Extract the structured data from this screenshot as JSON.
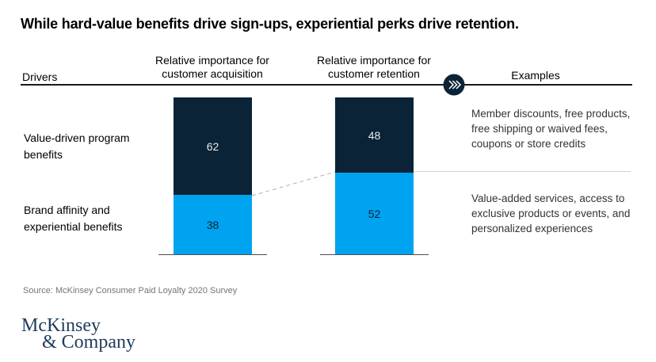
{
  "title": "While hard-value benefits drive sign-ups, experiential perks drive retention.",
  "columns": {
    "drivers": "Drivers",
    "acquisition": "Relative importance for customer acquisition",
    "retention": "Relative importance for customer retention",
    "examples": "Examples"
  },
  "rows": [
    {
      "driver": "Value-driven program benefits",
      "acquisition": 62,
      "retention": 48,
      "example": "Member discounts, free products, free shipping or waived fees, coupons or store credits"
    },
    {
      "driver": "Brand affinity and experiential benefits",
      "acquisition": 38,
      "retention": 52,
      "example": "Value-added services, access to exclusive products or events, and personalized experiences"
    }
  ],
  "source": "Source: McKinsey Consumer Paid Loyalty 2020 Survey",
  "logo": {
    "line1": "McKinsey",
    "line2": "& Company"
  },
  "icons": {
    "chevrons": "chevrons-right-icon"
  },
  "colors": {
    "deep_blue": "#0a2336",
    "cyan": "#00a3f0",
    "bar_label_light": "#e8ecef",
    "bar_label_dark": "#0d2232",
    "rule_dark": "#1a1a1a",
    "separator_gray": "#cfcfcf",
    "logo_navy": "#1e3c5c"
  },
  "chart_data": {
    "type": "bar",
    "variant": "stacked-100-percent",
    "title": "While hard-value benefits drive sign-ups, experiential perks drive retention.",
    "categories": [
      "Relative importance for customer acquisition",
      "Relative importance for customer retention"
    ],
    "series": [
      {
        "name": "Value-driven program benefits",
        "values": [
          62,
          48
        ],
        "color": "#0a2336",
        "position": "top"
      },
      {
        "name": "Brand affinity and experiential benefits",
        "values": [
          38,
          52
        ],
        "color": "#00a3f0",
        "position": "bottom"
      }
    ],
    "ylim": [
      0,
      100
    ],
    "grid": false,
    "legend_position": "row labels on left side",
    "annotations": [
      "dashed connector between segment boundaries of the two bars",
      "double-chevron badge on header rule between retention column and Examples column"
    ],
    "examples_column": [
      "Member discounts, free products, free shipping or waived fees, coupons or store credits",
      "Value-added services, access to exclusive products or events, and personalized experiences"
    ],
    "source": "Source: McKinsey Consumer Paid Loyalty 2020 Survey"
  }
}
